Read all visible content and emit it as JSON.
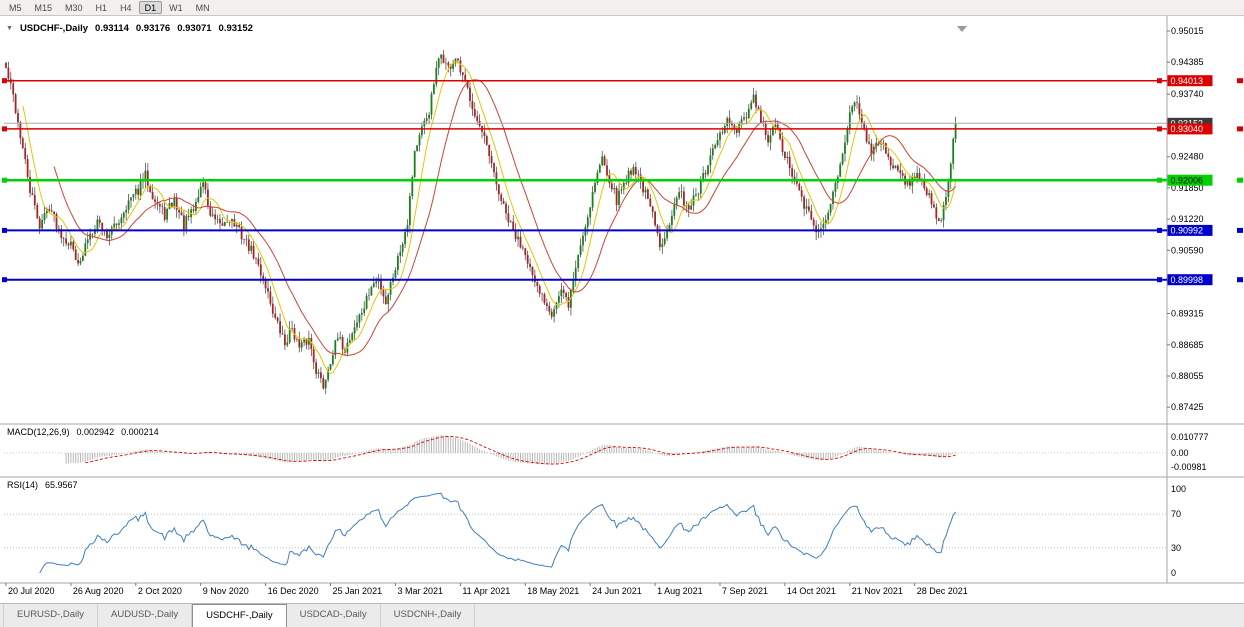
{
  "toolbar": {
    "timeframes": [
      {
        "label": "M5",
        "active": false
      },
      {
        "label": "M15",
        "active": false
      },
      {
        "label": "M30",
        "active": false
      },
      {
        "label": "H1",
        "active": false
      },
      {
        "label": "H4",
        "active": false
      },
      {
        "label": "D1",
        "active": true
      },
      {
        "label": "W1",
        "active": false
      },
      {
        "label": "MN",
        "active": false
      }
    ]
  },
  "header": {
    "collapse_icon": "▼",
    "title": "USDCHF-,Daily",
    "open": "0.93114",
    "high": "0.93176",
    "low": "0.93071",
    "close": "0.93152"
  },
  "indicators": {
    "macd": {
      "name": "MACD(12,26,9)",
      "value_main": "0.002942",
      "value_signal": "0.000214",
      "axis_labels": [
        "0.010777",
        "0.00",
        "-0.00981"
      ]
    },
    "rsi": {
      "name": "RSI(14)",
      "value": "65.9567",
      "axis_labels": [
        100,
        70,
        30,
        0
      ],
      "levels": [
        70,
        30
      ]
    }
  },
  "tabs": [
    {
      "label": "EURUSD-,Daily",
      "active": false
    },
    {
      "label": "AUDUSD-,Daily",
      "active": false
    },
    {
      "label": "USDCHF-,Daily",
      "active": true
    },
    {
      "label": "USDCAD-,Daily",
      "active": false
    },
    {
      "label": "USDCNH-,Daily",
      "active": false
    }
  ],
  "chart_data": {
    "type": "candlestick",
    "symbol": "USDCHF",
    "timeframe": "Daily",
    "bars": 396,
    "bars_per_label": 27,
    "y_axis_labels": [
      "0.95015",
      "0.94385",
      "0.93740",
      "0.93110",
      "0.92480",
      "0.91850",
      "0.91220",
      "0.90590",
      "0.89960",
      "0.89315",
      "0.88685",
      "0.88055",
      "0.87425"
    ],
    "x_axis_labels": [
      "20 Jul 2020",
      "26 Aug 2020",
      "2 Oct 2020",
      "9 Nov 2020",
      "16 Dec 2020",
      "25 Jan 2021",
      "3 Mar 2021",
      "11 Apr 2021",
      "18 May 2021",
      "24 Jun 2021",
      "1 Aug 2021",
      "7 Sep 2021",
      "14 Oct 2021",
      "21 Nov 2021",
      "28 Dec 2021"
    ],
    "current_price": {
      "value": 0.93152,
      "label": "0.93152",
      "line_color": "#aaaaaa",
      "badge_color": "#3a3a3a",
      "text_color": "#ffffff"
    },
    "horizontal_lines": [
      {
        "price": 0.94013,
        "label": "0.94013",
        "color": "#dd0000",
        "text_color": "#ffffff",
        "width": 1.5
      },
      {
        "price": 0.9304,
        "label": "0.93040",
        "color": "#dd0000",
        "text_color": "#ffffff",
        "width": 1.5
      },
      {
        "price": 0.92006,
        "label": "0.92006",
        "color": "#00d200",
        "text_color": "#000000",
        "width": 2.5
      },
      {
        "price": 0.90992,
        "label": "0.90992",
        "color": "#0000cc",
        "text_color": "#ffffff",
        "width": 2
      },
      {
        "price": 0.89998,
        "label": "0.89998",
        "color": "#0000cc",
        "text_color": "#ffffff",
        "width": 2
      }
    ],
    "moving_averages": [
      {
        "period": 8,
        "color": "#e3c800"
      },
      {
        "period": 21,
        "color": "#cc4433"
      }
    ],
    "colors": {
      "up": "#1a801a",
      "down": "#aa2222",
      "wick": "#3a3a3a",
      "macd_hist": "#b8b8b8",
      "macd_signal": "#dd0000",
      "rsi": "#3e7fc1",
      "axis_text": "#000000"
    },
    "close_anchors": [
      [
        0,
        0.9425
      ],
      [
        3,
        0.937
      ],
      [
        6,
        0.929
      ],
      [
        10,
        0.918
      ],
      [
        14,
        0.911
      ],
      [
        18,
        0.915
      ],
      [
        22,
        0.91
      ],
      [
        27,
        0.907
      ],
      [
        31,
        0.903
      ],
      [
        34,
        0.9085
      ],
      [
        38,
        0.912
      ],
      [
        42,
        0.909
      ],
      [
        46,
        0.911
      ],
      [
        50,
        0.915
      ],
      [
        55,
        0.918
      ],
      [
        58,
        0.921
      ],
      [
        62,
        0.916
      ],
      [
        66,
        0.913
      ],
      [
        70,
        0.916
      ],
      [
        74,
        0.911
      ],
      [
        78,
        0.914
      ],
      [
        82,
        0.92
      ],
      [
        85,
        0.913
      ],
      [
        89,
        0.9105
      ],
      [
        93,
        0.9125
      ],
      [
        98,
        0.909
      ],
      [
        103,
        0.905
      ],
      [
        108,
        0.899
      ],
      [
        112,
        0.892
      ],
      [
        116,
        0.887
      ],
      [
        119,
        0.8905
      ],
      [
        122,
        0.886
      ],
      [
        126,
        0.888
      ],
      [
        129,
        0.882
      ],
      [
        132,
        0.8785
      ],
      [
        135,
        0.884
      ],
      [
        138,
        0.888
      ],
      [
        141,
        0.886
      ],
      [
        145,
        0.8905
      ],
      [
        149,
        0.8945
      ],
      [
        152,
        0.8985
      ],
      [
        155,
        0.9
      ],
      [
        158,
        0.8955
      ],
      [
        161,
        0.901
      ],
      [
        164,
        0.906
      ],
      [
        167,
        0.912
      ],
      [
        170,
        0.926
      ],
      [
        173,
        0.93
      ],
      [
        176,
        0.934
      ],
      [
        179,
        0.942
      ],
      [
        181,
        0.9455
      ],
      [
        184,
        0.9425
      ],
      [
        187,
        0.9445
      ],
      [
        190,
        0.9405
      ],
      [
        193,
        0.937
      ],
      [
        196,
        0.932
      ],
      [
        200,
        0.9265
      ],
      [
        204,
        0.919
      ],
      [
        208,
        0.913
      ],
      [
        212,
        0.9085
      ],
      [
        216,
        0.906
      ],
      [
        220,
        0.8985
      ],
      [
        224,
        0.896
      ],
      [
        227,
        0.8935
      ],
      [
        231,
        0.8975
      ],
      [
        234,
        0.895
      ],
      [
        238,
        0.905
      ],
      [
        242,
        0.913
      ],
      [
        245,
        0.92
      ],
      [
        248,
        0.9245
      ],
      [
        251,
        0.9205
      ],
      [
        254,
        0.916
      ],
      [
        257,
        0.9195
      ],
      [
        261,
        0.923
      ],
      [
        265,
        0.9185
      ],
      [
        269,
        0.913
      ],
      [
        272,
        0.9065
      ],
      [
        276,
        0.912
      ],
      [
        280,
        0.9175
      ],
      [
        284,
        0.9145
      ],
      [
        288,
        0.918
      ],
      [
        292,
        0.923
      ],
      [
        296,
        0.928
      ],
      [
        300,
        0.932
      ],
      [
        304,
        0.9295
      ],
      [
        308,
        0.933
      ],
      [
        311,
        0.9365
      ],
      [
        314,
        0.932
      ],
      [
        317,
        0.928
      ],
      [
        320,
        0.931
      ],
      [
        324,
        0.925
      ],
      [
        328,
        0.92
      ],
      [
        332,
        0.915
      ],
      [
        336,
        0.911
      ],
      [
        339,
        0.9095
      ],
      [
        343,
        0.915
      ],
      [
        347,
        0.924
      ],
      [
        351,
        0.933
      ],
      [
        354,
        0.9365
      ],
      [
        357,
        0.93
      ],
      [
        360,
        0.925
      ],
      [
        364,
        0.9285
      ],
      [
        368,
        0.9235
      ],
      [
        372,
        0.9215
      ],
      [
        376,
        0.9185
      ],
      [
        379,
        0.9225
      ],
      [
        382,
        0.919
      ],
      [
        385,
        0.915
      ],
      [
        388,
        0.9115
      ],
      [
        391,
        0.916
      ],
      [
        393,
        0.924
      ],
      [
        395,
        0.9315
      ]
    ]
  }
}
